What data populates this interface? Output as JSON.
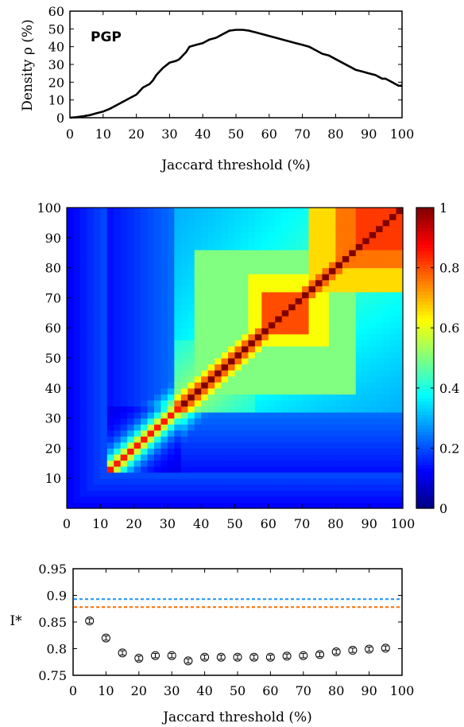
{
  "chart_data": [
    {
      "type": "line",
      "annotation": "PGP",
      "xlabel": "Jaccard threshold (%)",
      "ylabel": "Density ρ (%)",
      "xlim": [
        0,
        100
      ],
      "ylim": [
        0,
        60
      ],
      "xticks": [
        "0",
        "10",
        "20",
        "30",
        "40",
        "50",
        "60",
        "70",
        "80",
        "90",
        "100"
      ],
      "yticks": [
        "0",
        "10",
        "20",
        "30",
        "40",
        "50",
        "60"
      ],
      "grid": false,
      "series": [
        {
          "color": "#000000",
          "x": [
            0,
            2,
            4,
            6,
            8,
            10,
            12,
            14,
            16,
            18,
            20,
            21,
            22,
            24,
            25,
            26,
            27,
            28,
            30,
            32,
            33,
            34,
            35,
            36,
            38,
            40,
            41,
            42,
            44,
            45,
            46,
            47,
            48,
            50,
            52,
            54,
            55,
            56,
            58,
            60,
            62,
            64,
            66,
            68,
            70,
            72,
            74,
            76,
            78,
            80,
            82,
            84,
            86,
            88,
            90,
            92,
            94,
            95,
            96,
            97,
            98,
            99,
            100
          ],
          "y": [
            0,
            0.3,
            0.8,
            1.5,
            2.5,
            3.5,
            5,
            7,
            9,
            11,
            13,
            15,
            17,
            19,
            21,
            24,
            26,
            28,
            31,
            32,
            33,
            35,
            37,
            40,
            41,
            42,
            43,
            44,
            45,
            46,
            47,
            48,
            49,
            49.5,
            49.5,
            49,
            48.5,
            48,
            47,
            46,
            45,
            44,
            43,
            42,
            41,
            40,
            38,
            36,
            35,
            33,
            31,
            29,
            27,
            26,
            25,
            24,
            22,
            22,
            21,
            20,
            19,
            18,
            18
          ]
        }
      ]
    },
    {
      "type": "heatmap",
      "xlim": [
        0,
        100
      ],
      "ylim": [
        0,
        100
      ],
      "xticks": [
        "0",
        "10",
        "20",
        "30",
        "40",
        "50",
        "60",
        "70",
        "80",
        "90",
        "100"
      ],
      "yticks": [
        "10",
        "20",
        "30",
        "40",
        "50",
        "60",
        "70",
        "80",
        "90",
        "100"
      ],
      "colormap": "jet",
      "colorbar_range": [
        0,
        1
      ],
      "colorbar_ticks": [
        "0",
        "0.2",
        "0.4",
        "0.6",
        "0.8",
        "1"
      ],
      "colors": {
        "low": "#00007f",
        "mid": "#7fff7f",
        "high": "#7f0000"
      }
    },
    {
      "type": "scatter",
      "xlabel": "Jaccard threshold (%)",
      "ylabel": "I*",
      "xlim": [
        0,
        100
      ],
      "ylim": [
        0.75,
        0.95
      ],
      "xticks": [
        "0",
        "10",
        "20",
        "30",
        "40",
        "50",
        "60",
        "70",
        "80",
        "90",
        "100"
      ],
      "yticks": [
        "0.75",
        "0.8",
        "0.85",
        "0.9",
        "0.95"
      ],
      "grid": false,
      "series": [
        {
          "marker": "open-circle-errorbar",
          "color": "#000000",
          "x": [
            5,
            10,
            15,
            20,
            25,
            30,
            35,
            40,
            45,
            50,
            55,
            60,
            65,
            70,
            75,
            80,
            85,
            90,
            95
          ],
          "y": [
            0.852,
            0.82,
            0.792,
            0.782,
            0.787,
            0.787,
            0.777,
            0.784,
            0.784,
            0.784,
            0.784,
            0.784,
            0.786,
            0.787,
            0.789,
            0.794,
            0.797,
            0.799,
            0.801
          ],
          "err": [
            0.004,
            0.004,
            0.004,
            0.004,
            0.004,
            0.004,
            0.004,
            0.004,
            0.004,
            0.004,
            0.004,
            0.004,
            0.004,
            0.004,
            0.004,
            0.004,
            0.004,
            0.004,
            0.004
          ]
        }
      ],
      "reference_lines": [
        {
          "y": 0.893,
          "color": "#1e90ff",
          "style": "dashed"
        },
        {
          "y": 0.878,
          "color": "#ff6a00",
          "style": "dashed"
        }
      ]
    }
  ]
}
